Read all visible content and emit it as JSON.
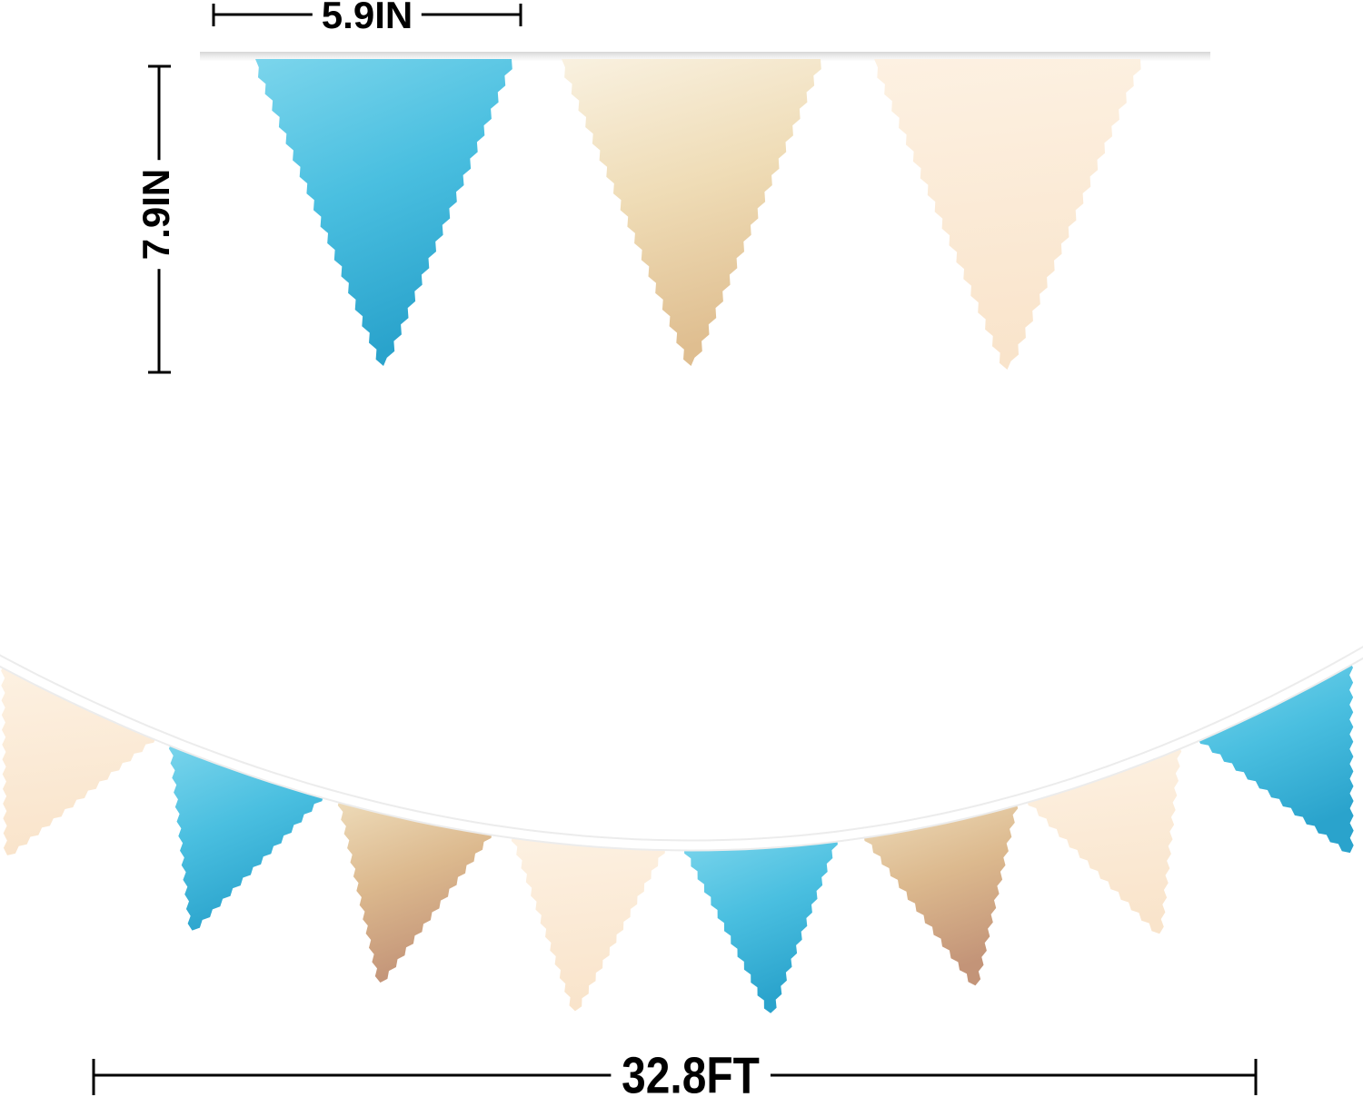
{
  "image_type": "pennant-banner product dimension diagram",
  "dimensions": {
    "width": "5.9IN",
    "height": "7.9IN",
    "length": "32.8FT"
  },
  "colors": {
    "background": "#ffffff",
    "dimension_lines": "#000000",
    "string_top": [
      "#d6d6d6",
      "#ededed",
      "#fdfdfd"
    ],
    "string_halo": "#ececec",
    "string_core": "#ffffff",
    "blue": [
      "#7bd5ec",
      "#4abfe0",
      "#2aa3cc"
    ],
    "gold_top": [
      "#f9f1e0",
      "#efdcb6",
      "#dfbe90"
    ],
    "gold_bottom": [
      "#eedcba",
      "#dcb98e",
      "#c39478"
    ],
    "cream": [
      "#fdf1e2",
      "#f9e4cb"
    ]
  },
  "garland": {
    "top_row_pennants": [
      "blue",
      "gold_top",
      "cream"
    ],
    "bottom_row_pennants": [
      "cream",
      "blue",
      "gold_bottom",
      "cream",
      "blue",
      "gold_bottom",
      "cream",
      "blue"
    ]
  }
}
